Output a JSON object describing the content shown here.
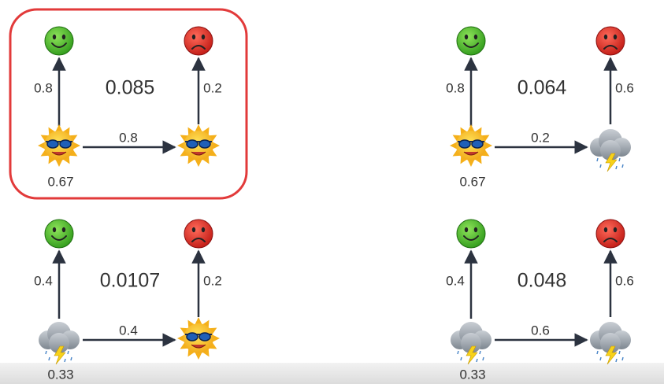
{
  "panels": [
    {
      "total": "0.085",
      "start": "0.67",
      "emit_left": "0.8",
      "transition": "0.8",
      "emit_right": "0.2"
    },
    {
      "total": "0.064",
      "start": "0.67",
      "emit_left": "0.8",
      "transition": "0.2",
      "emit_right": "0.6"
    },
    {
      "total": "0.0107",
      "start": "0.33",
      "emit_left": "0.4",
      "transition": "0.4",
      "emit_right": "0.2"
    },
    {
      "total": "0.048",
      "start": "0.33",
      "emit_left": "0.4",
      "transition": "0.6",
      "emit_right": "0.6"
    }
  ]
}
